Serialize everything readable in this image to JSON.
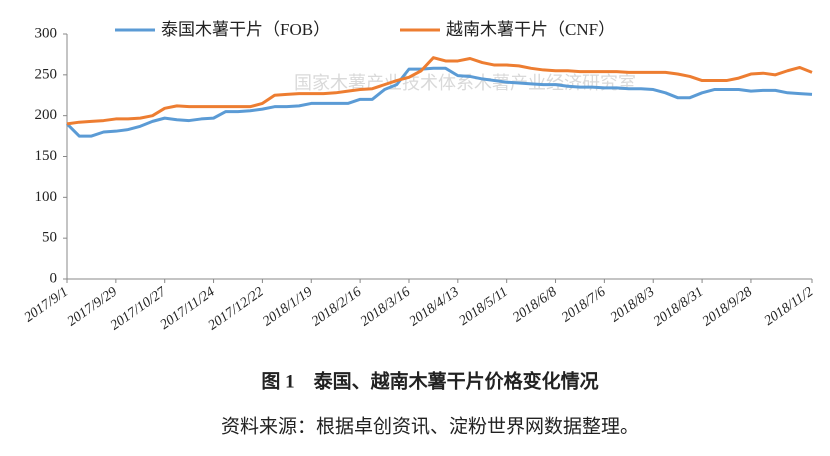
{
  "chart_data": {
    "type": "line",
    "annotation": "国家木薯产业技术体系木薯产业经济研究室",
    "caption": "图 1　泰国、越南木薯干片价格变化情况",
    "source": "资料来源：根据卓创资讯、淀粉世界网数据整理。",
    "categories": [
      "2017/9/1",
      null,
      null,
      null,
      "2017/9/29",
      null,
      null,
      null,
      "2017/10/27",
      null,
      null,
      null,
      "2017/11/24",
      null,
      null,
      null,
      "2017/12/22",
      null,
      null,
      null,
      "2018/1/19",
      null,
      null,
      null,
      "2018/2/16",
      null,
      null,
      null,
      "2018/3/16",
      null,
      null,
      null,
      "2018/4/13",
      null,
      null,
      null,
      "2018/5/11",
      null,
      null,
      null,
      "2018/6/8",
      null,
      null,
      null,
      "2018/7/6",
      null,
      null,
      null,
      "2018/8/3",
      null,
      null,
      null,
      "2018/8/31",
      null,
      null,
      null,
      "2018/9/28",
      null,
      null,
      null,
      null,
      "2018/11/2"
    ],
    "series": [
      {
        "name": "泰国木薯干片（FOB）",
        "color": "#5b9bd5",
        "values": [
          190,
          175,
          175,
          180,
          181,
          183,
          187,
          193,
          197,
          195,
          194,
          196,
          197,
          205,
          205,
          206,
          208,
          211,
          211,
          212,
          215,
          215,
          215,
          215,
          220,
          220,
          232,
          238,
          257,
          257,
          258,
          258,
          249,
          248,
          245,
          243,
          241,
          240,
          239,
          238,
          238,
          236,
          235,
          235,
          234,
          234,
          233,
          233,
          232,
          228,
          222,
          222,
          228,
          232,
          232,
          232,
          230,
          231,
          231,
          228,
          227,
          226
        ]
      },
      {
        "name": "越南木薯干片（CNF）",
        "color": "#ed7d31",
        "values": [
          190,
          192,
          193,
          194,
          196,
          196,
          197,
          200,
          209,
          212,
          211,
          211,
          211,
          211,
          211,
          211,
          215,
          225,
          226,
          227,
          227,
          227,
          228,
          230,
          232,
          233,
          238,
          243,
          247,
          255,
          271,
          267,
          267,
          270,
          265,
          262,
          262,
          261,
          258,
          256,
          255,
          255,
          254,
          254,
          254,
          254,
          253,
          253,
          253,
          253,
          251,
          248,
          243,
          243,
          243,
          246,
          251,
          252,
          250,
          255,
          259,
          253
        ]
      }
    ],
    "ylim": [
      0,
      300
    ],
    "yticks": [
      0,
      50,
      100,
      150,
      200,
      250,
      300
    ],
    "legend": "top"
  }
}
